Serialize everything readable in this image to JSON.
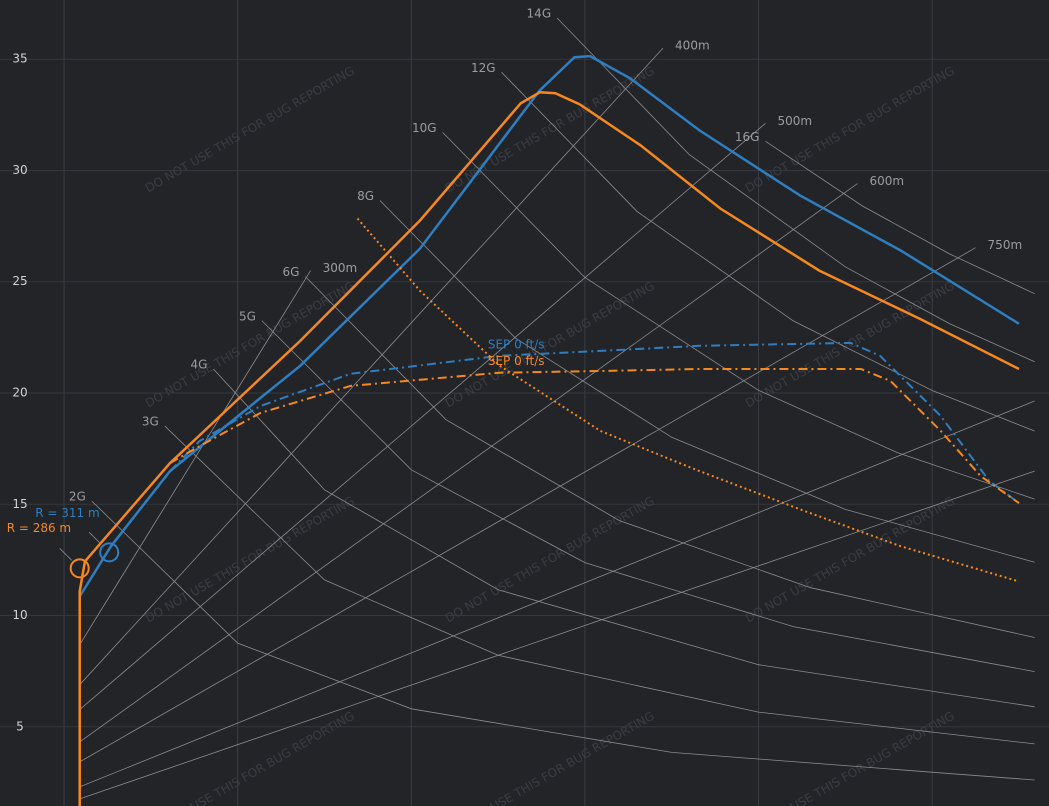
{
  "chart_data": {
    "type": "line",
    "watermark": "DO NOT USE THIS FOR BUG REPORTING",
    "xlim": [
      0.631,
      6.673
    ],
    "xticks": [
      1,
      2,
      3,
      4,
      5,
      6
    ],
    "ylim": [
      1.44,
      37.66
    ],
    "yticks": [
      5,
      10,
      15,
      20,
      25,
      30,
      35
    ],
    "grid": true,
    "series": [
      {
        "color": "#2f7ec0",
        "style": "solid",
        "x": [
          1.09,
          1.27,
          1.61,
          2.36,
          3.05,
          3.74,
          3.94,
          4.03,
          4.26,
          4.66,
          5.24,
          5.82,
          6.5
        ],
        "values": [
          10.86,
          13.11,
          16.49,
          21.22,
          26.49,
          33.6,
          35.09,
          35.14,
          34.14,
          31.8,
          28.87,
          26.4,
          23.11
        ]
      },
      {
        "color": "#f5891f",
        "style": "solid",
        "x": [
          1.09,
          1.09,
          1.12,
          1.61,
          2.36,
          3.05,
          3.63,
          3.74,
          3.83,
          3.97,
          4.32,
          4.78,
          5.35,
          5.93,
          6.5
        ],
        "values": [
          1.35,
          11.08,
          12.43,
          16.85,
          22.34,
          27.75,
          33.02,
          33.51,
          33.47,
          32.97,
          31.13,
          28.29,
          25.5,
          23.33,
          21.08
        ]
      },
      {
        "color": "#2f7ec0",
        "style": "dashdot",
        "x": [
          1.61,
          1.78,
          2.13,
          2.65,
          3.51,
          4.09,
          4.66,
          5.53,
          5.7,
          6.05,
          6.33,
          6.5
        ],
        "values": [
          16.49,
          17.84,
          19.41,
          20.86,
          21.67,
          21.89,
          22.12,
          22.25,
          21.67,
          18.96,
          16.04,
          15.05
        ]
      },
      {
        "color": "#f5891f",
        "style": "dashdot",
        "x": [
          1.61,
          1.78,
          2.13,
          2.65,
          3.51,
          4.09,
          4.66,
          5.59,
          5.76,
          6.05,
          6.28,
          6.5
        ],
        "values": [
          16.85,
          17.61,
          19.1,
          20.32,
          20.91,
          20.99,
          21.08,
          21.08,
          20.54,
          18.29,
          16.26,
          15.05
        ]
      },
      {
        "color": "#f5891f",
        "style": "dotted",
        "x": [
          2.69,
          3.05,
          3.51,
          4.09,
          4.66,
          5.24,
          5.82,
          6.5
        ],
        "values": [
          27.84,
          24.59,
          21.22,
          18.29,
          16.49,
          14.77,
          13.11,
          11.53
        ]
      }
    ],
    "markers": [
      {
        "label": "R = 311 m",
        "color": "#2f7ec0",
        "x": 1.26,
        "y": 12.84
      },
      {
        "label": "R = 286 m",
        "color": "#f5891f",
        "x": 1.09,
        "y": 12.12
      }
    ],
    "annotations": [
      {
        "text": "SEP 0 ft/s",
        "color": "#2f7ec0",
        "series": 2
      },
      {
        "text": "SEP 0 ft/s",
        "color": "#f5891f",
        "series": 3
      }
    ],
    "g_curves": [
      {
        "label": "2G",
        "x": [
          1.16,
          2,
          3,
          4.5,
          6.59
        ],
        "y": [
          15.14,
          8.76,
          5.81,
          3.85,
          2.61
        ]
      },
      {
        "label": "3G",
        "x": [
          1.58,
          2.5,
          3.5,
          5,
          6.59
        ],
        "y": [
          18.51,
          11.6,
          8.21,
          5.66,
          4.23
        ]
      },
      {
        "label": "4G",
        "x": [
          1.86,
          2.5,
          3.5,
          5,
          6.59
        ],
        "y": [
          21.08,
          15.65,
          11.16,
          7.79,
          5.9
        ]
      },
      {
        "label": "5G",
        "x": [
          2.14,
          3,
          4,
          5.2,
          6.59
        ],
        "y": [
          23.24,
          16.55,
          12.38,
          9.5,
          7.48
        ]
      },
      {
        "label": "6G",
        "x": [
          2.39,
          3.2,
          4.2,
          5.3,
          6.59
        ],
        "y": [
          25.23,
          18.8,
          14.26,
          11.25,
          9.01
        ]
      },
      {
        "label": "8G",
        "x": [
          2.82,
          3.6,
          4.5,
          5.5,
          6.59
        ],
        "y": [
          28.65,
          22.46,
          18.01,
          14.77,
          12.39
        ]
      },
      {
        "label": "10G",
        "x": [
          3.18,
          4,
          5,
          5.8,
          6.59
        ],
        "y": [
          31.71,
          25.19,
          20.12,
          17.32,
          15.23
        ]
      },
      {
        "label": "12G",
        "x": [
          3.52,
          4.3,
          5.2,
          6,
          6.59
        ],
        "y": [
          34.41,
          28.16,
          23.24,
          20.11,
          18.29
        ]
      },
      {
        "label": "14G",
        "x": [
          3.84,
          4.6,
          5.5,
          6.1,
          6.59
        ],
        "y": [
          36.85,
          30.72,
          25.67,
          23.12,
          21.4
        ]
      },
      {
        "label": "16G",
        "x": [
          5.04,
          5.6,
          6.1,
          6.59
        ],
        "y": [
          31.31,
          28.4,
          26.25,
          24.46
        ]
      }
    ],
    "radius_lines": [
      {
        "label": "300m",
        "x": [
          1.09,
          2.42
        ],
        "y": [
          8.69,
          25.5
        ]
      },
      {
        "label": "400m",
        "x": [
          1.09,
          4.45
        ],
        "y": [
          6.89,
          35.5
        ]
      },
      {
        "label": "500m",
        "x": [
          1.09,
          5.04
        ],
        "y": [
          5.77,
          32.12
        ]
      },
      {
        "label": "600m",
        "x": [
          1.09,
          5.57
        ],
        "y": [
          4.32,
          29.41
        ]
      },
      {
        "label": "750m",
        "x": [
          1.09,
          6.25
        ],
        "y": [
          3.42,
          26.53
        ]
      },
      {
        "label": null,
        "x": [
          1.09,
          6.59
        ],
        "y": [
          2.3,
          19.64
        ]
      },
      {
        "label": null,
        "x": [
          1.09,
          6.59
        ],
        "y": [
          1.76,
          16.49
        ]
      }
    ]
  }
}
